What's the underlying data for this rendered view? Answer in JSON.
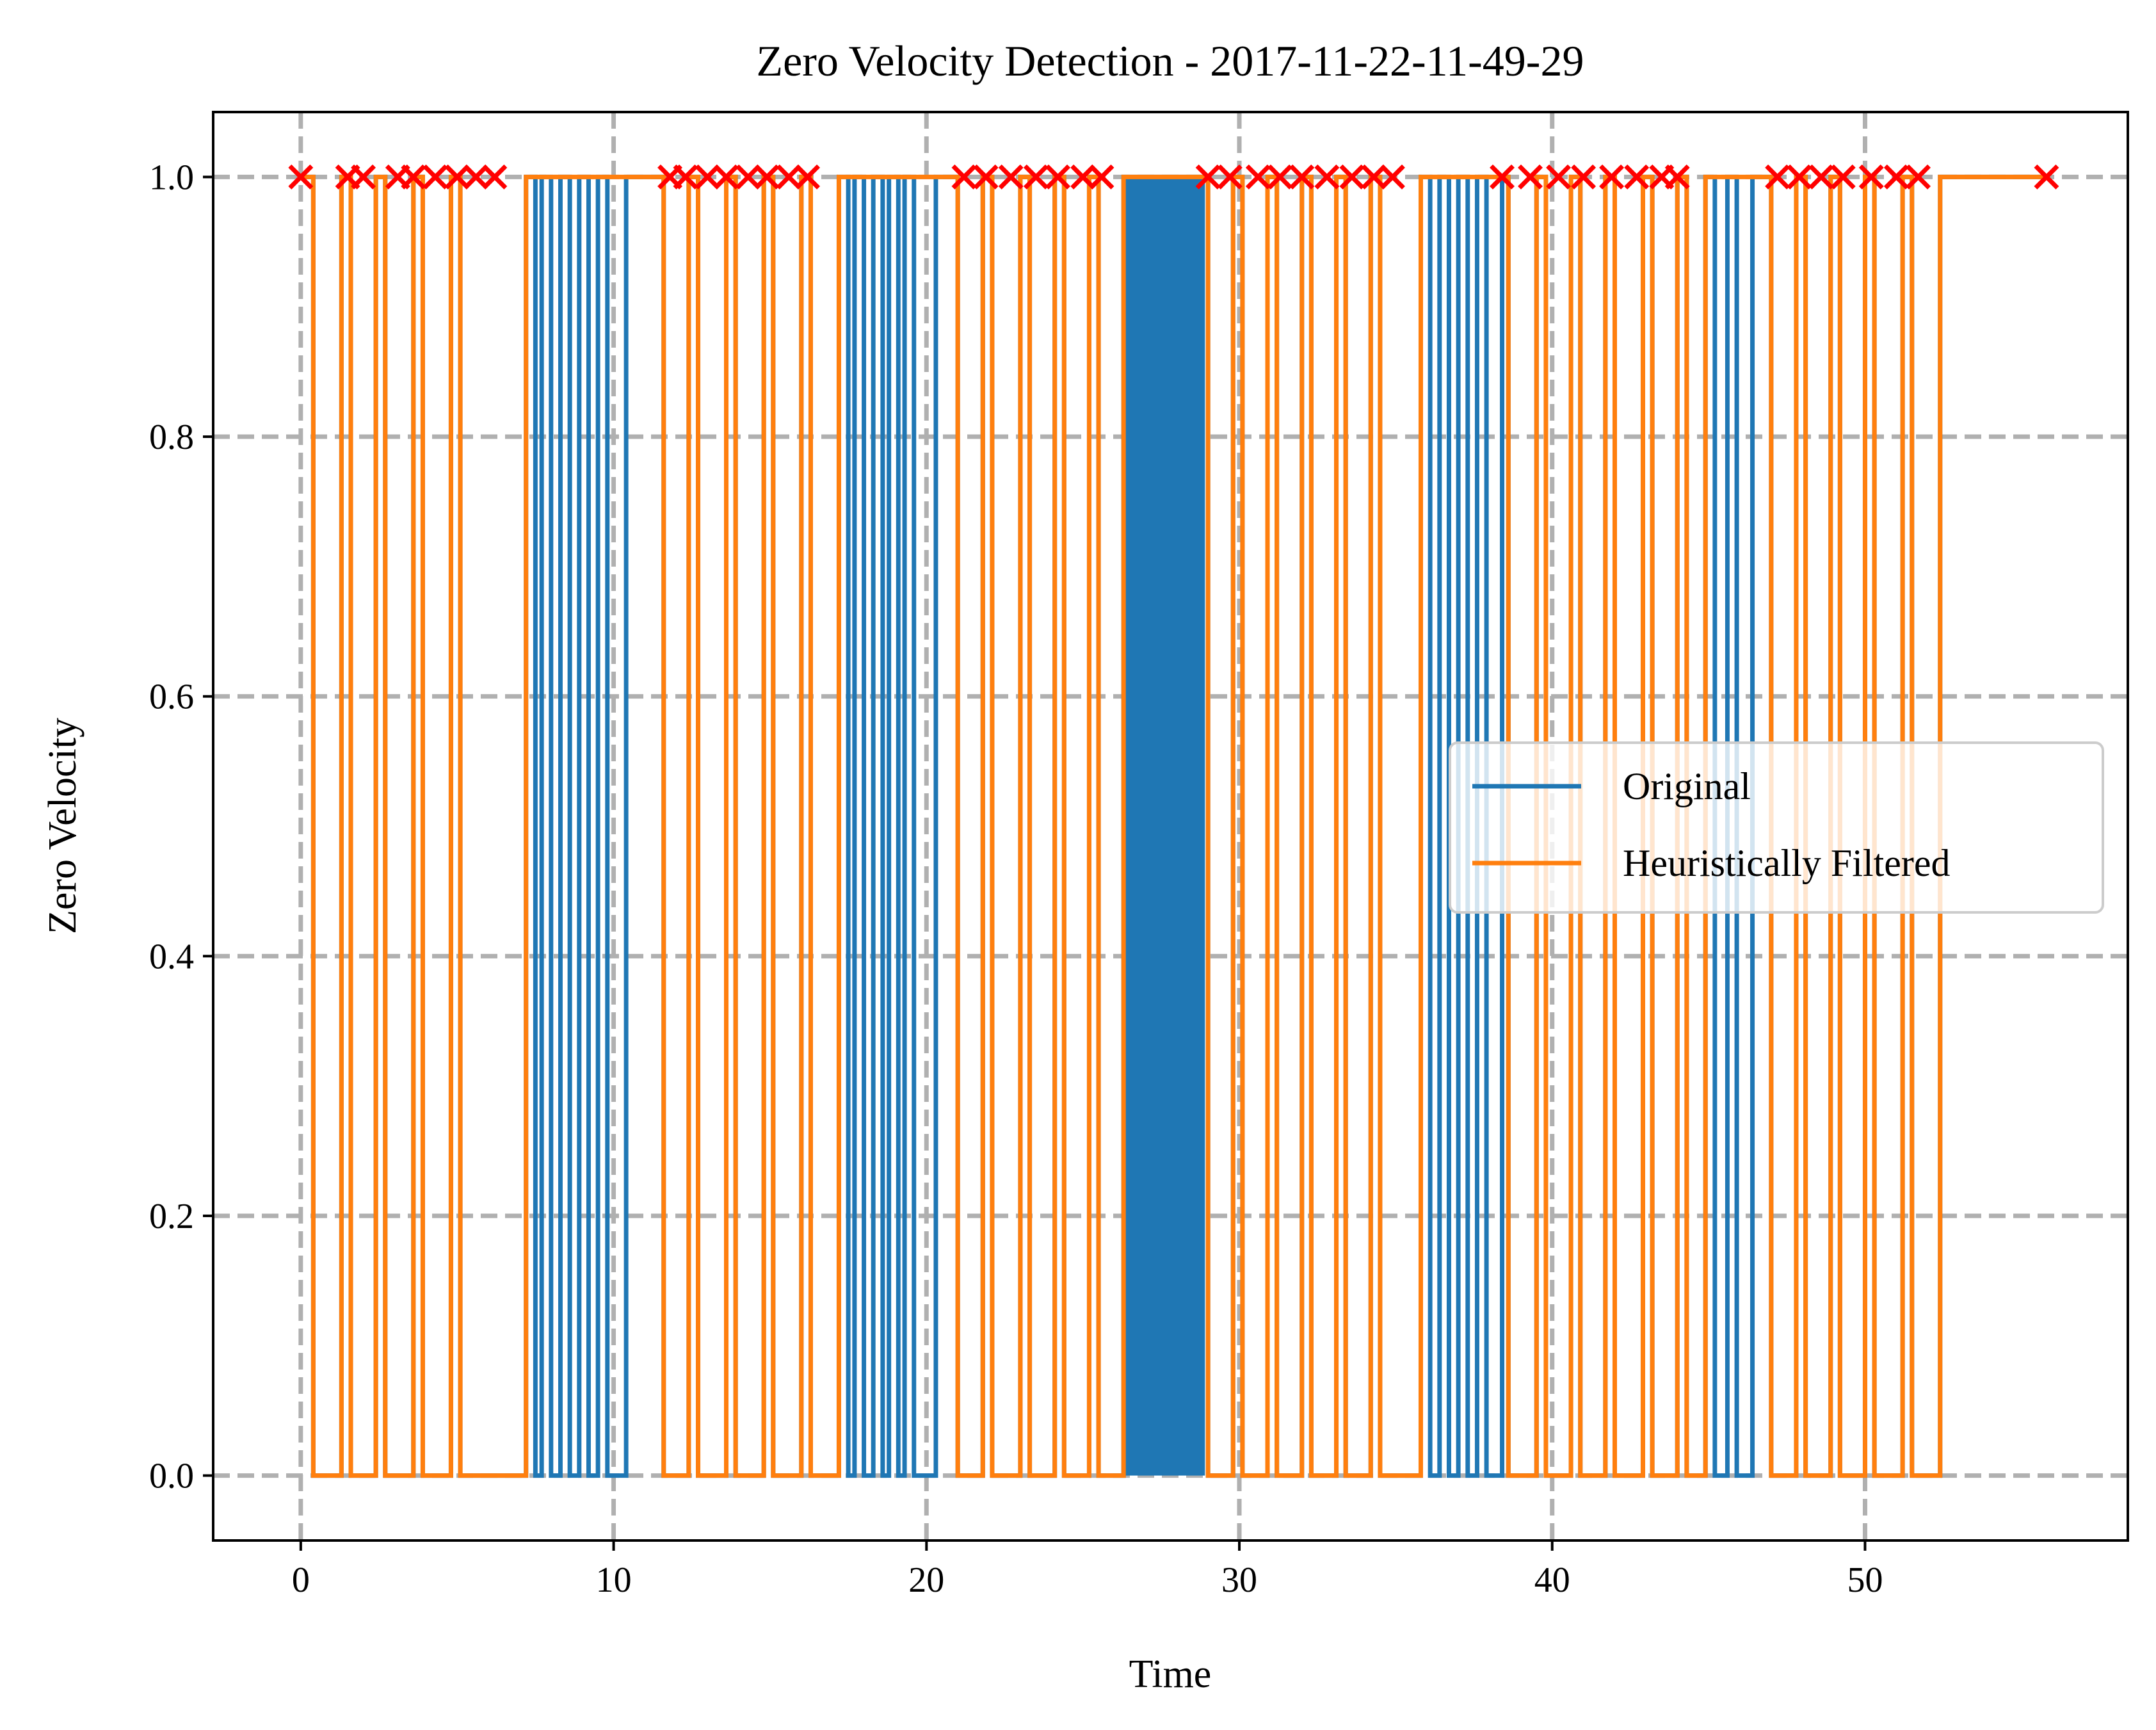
{
  "chart_data": {
    "type": "line",
    "title": "Zero Velocity Detection - 2017-11-22-11-49-29",
    "xlabel": "Time",
    "ylabel": "Zero Velocity",
    "xlim": [
      -2.8,
      58.4
    ],
    "ylim": [
      -0.05,
      1.05
    ],
    "xticks": [
      0,
      10,
      20,
      30,
      40,
      50
    ],
    "yticks": [
      0.0,
      0.2,
      0.4,
      0.6,
      0.8,
      1.0
    ],
    "xtick_labels": [
      "0",
      "10",
      "20",
      "30",
      "40",
      "50"
    ],
    "ytick_labels": [
      "0.0",
      "0.2",
      "0.4",
      "0.6",
      "0.8",
      "1.0"
    ],
    "grid": true,
    "legend_position": "center-right",
    "colors": {
      "original": "#1f77b4",
      "filtered": "#ff7f0e",
      "marker": "#ff0000",
      "grid": "#b0b0b0"
    },
    "series": [
      {
        "name": "Original",
        "kind": "step",
        "dense_region": [
          26.3,
          28.9
        ],
        "zero_intervals": [
          [
            0.4,
            1.3
          ],
          [
            1.6,
            2.4
          ],
          [
            2.7,
            3.6
          ],
          [
            3.9,
            4.8
          ],
          [
            5.1,
            7.2
          ],
          [
            7.5,
            7.7
          ],
          [
            8.0,
            8.3
          ],
          [
            8.6,
            8.9
          ],
          [
            9.2,
            9.5
          ],
          [
            9.8,
            10.4
          ],
          [
            11.6,
            12.4
          ],
          [
            12.7,
            13.6
          ],
          [
            13.9,
            14.8
          ],
          [
            15.1,
            16.0
          ],
          [
            16.3,
            17.2
          ],
          [
            17.5,
            17.7
          ],
          [
            18.0,
            18.3
          ],
          [
            18.6,
            18.8
          ],
          [
            19.1,
            19.3
          ],
          [
            19.6,
            20.3
          ],
          [
            21.0,
            21.8
          ],
          [
            22.1,
            23.0
          ],
          [
            23.3,
            24.1
          ],
          [
            24.4,
            25.2
          ],
          [
            25.5,
            26.3
          ],
          [
            29.0,
            29.8
          ],
          [
            30.1,
            30.9
          ],
          [
            31.2,
            32.0
          ],
          [
            32.3,
            33.1
          ],
          [
            33.4,
            34.2
          ],
          [
            34.5,
            35.8
          ],
          [
            36.1,
            36.4
          ],
          [
            36.7,
            37.0
          ],
          [
            37.3,
            37.6
          ],
          [
            37.9,
            38.4
          ],
          [
            38.6,
            39.5
          ],
          [
            39.8,
            40.6
          ],
          [
            40.9,
            41.7
          ],
          [
            42.0,
            42.9
          ],
          [
            43.2,
            44.0
          ],
          [
            44.3,
            44.9
          ],
          [
            45.2,
            45.6
          ],
          [
            45.9,
            46.4
          ],
          [
            47.0,
            47.8
          ],
          [
            48.1,
            48.9
          ],
          [
            49.2,
            50.0
          ],
          [
            50.3,
            51.2
          ],
          [
            51.5,
            52.4
          ]
        ]
      },
      {
        "name": "Heuristically Filtered",
        "kind": "step",
        "zero_intervals": [
          [
            0.4,
            1.3
          ],
          [
            1.6,
            2.4
          ],
          [
            2.7,
            3.6
          ],
          [
            3.9,
            4.8
          ],
          [
            5.1,
            7.2
          ],
          [
            11.6,
            12.4
          ],
          [
            12.7,
            13.6
          ],
          [
            13.9,
            14.8
          ],
          [
            15.1,
            16.0
          ],
          [
            16.3,
            17.2
          ],
          [
            21.0,
            21.8
          ],
          [
            22.1,
            23.0
          ],
          [
            23.3,
            24.1
          ],
          [
            24.4,
            25.2
          ],
          [
            25.5,
            26.3
          ],
          [
            29.0,
            29.8
          ],
          [
            30.1,
            30.9
          ],
          [
            31.2,
            32.0
          ],
          [
            32.3,
            33.1
          ],
          [
            33.4,
            34.2
          ],
          [
            34.5,
            35.8
          ],
          [
            38.6,
            39.5
          ],
          [
            39.8,
            40.6
          ],
          [
            40.9,
            41.7
          ],
          [
            42.0,
            42.9
          ],
          [
            43.2,
            44.0
          ],
          [
            44.3,
            44.9
          ],
          [
            47.0,
            47.8
          ],
          [
            48.1,
            48.9
          ],
          [
            49.2,
            50.0
          ],
          [
            50.3,
            51.2
          ],
          [
            51.5,
            52.4
          ]
        ]
      }
    ],
    "markers": {
      "symbol": "x",
      "y": 1.0,
      "x": [
        0,
        1.5,
        2.0,
        3.1,
        3.6,
        4.3,
        5.0,
        5.6,
        6.2,
        11.8,
        12.3,
        13.0,
        13.6,
        14.3,
        14.9,
        15.6,
        16.2,
        21.2,
        21.9,
        22.7,
        23.5,
        24.2,
        25.0,
        25.6,
        29.0,
        29.7,
        30.6,
        31.3,
        32.0,
        32.8,
        33.6,
        34.3,
        34.9,
        38.4,
        39.3,
        40.2,
        41.0,
        41.9,
        42.7,
        43.5,
        44.0,
        47.2,
        47.9,
        48.6,
        49.3,
        50.2,
        51.0,
        51.7,
        55.8
      ]
    }
  }
}
